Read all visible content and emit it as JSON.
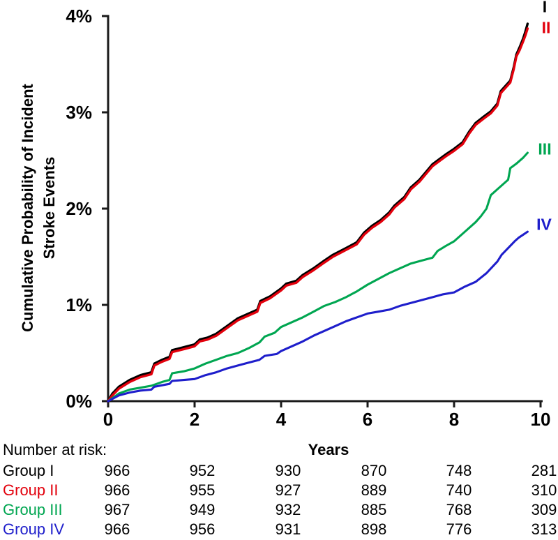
{
  "chart_data": {
    "type": "line",
    "subtype": "cumulative-incidence-curves",
    "xlabel": "Years",
    "ylabel_line1": "Cumulative Probability of Incident",
    "ylabel_line2": "Stroke Events",
    "xlim": [
      0,
      10
    ],
    "ylim_percent": [
      0,
      4
    ],
    "grid": false,
    "x_tick_values": [
      0,
      2,
      4,
      6,
      8,
      10
    ],
    "x_tick_labels": [
      "0",
      "2",
      "4",
      "6",
      "8",
      "10"
    ],
    "y_tick_values": [
      0,
      1,
      2,
      3,
      4
    ],
    "y_tick_labels": [
      "0%",
      "1%",
      "2%",
      "3%",
      "4%"
    ],
    "legend_position": "right-of-curve-ends",
    "series": [
      {
        "name": "Group I",
        "legend": "I",
        "color": "#000000",
        "points": [
          [
            0,
            0
          ],
          [
            0.1,
            0.08
          ],
          [
            0.25,
            0.15
          ],
          [
            0.5,
            0.22
          ],
          [
            0.75,
            0.27
          ],
          [
            1.0,
            0.3
          ],
          [
            1.07,
            0.39
          ],
          [
            1.25,
            0.43
          ],
          [
            1.42,
            0.46
          ],
          [
            1.48,
            0.53
          ],
          [
            1.75,
            0.56
          ],
          [
            2.0,
            0.59
          ],
          [
            2.12,
            0.64
          ],
          [
            2.3,
            0.66
          ],
          [
            2.5,
            0.7
          ],
          [
            2.75,
            0.78
          ],
          [
            3.0,
            0.86
          ],
          [
            3.2,
            0.9
          ],
          [
            3.45,
            0.95
          ],
          [
            3.52,
            1.04
          ],
          [
            3.75,
            1.09
          ],
          [
            4.0,
            1.17
          ],
          [
            4.12,
            1.22
          ],
          [
            4.35,
            1.25
          ],
          [
            4.5,
            1.31
          ],
          [
            4.75,
            1.38
          ],
          [
            5.0,
            1.46
          ],
          [
            5.2,
            1.52
          ],
          [
            5.5,
            1.59
          ],
          [
            5.75,
            1.65
          ],
          [
            5.92,
            1.75
          ],
          [
            6.1,
            1.82
          ],
          [
            6.3,
            1.88
          ],
          [
            6.5,
            1.96
          ],
          [
            6.62,
            2.03
          ],
          [
            6.85,
            2.12
          ],
          [
            7.0,
            2.22
          ],
          [
            7.2,
            2.3
          ],
          [
            7.35,
            2.38
          ],
          [
            7.5,
            2.46
          ],
          [
            7.8,
            2.56
          ],
          [
            8.0,
            2.62
          ],
          [
            8.2,
            2.69
          ],
          [
            8.35,
            2.8
          ],
          [
            8.5,
            2.89
          ],
          [
            8.7,
            2.96
          ],
          [
            8.85,
            3.01
          ],
          [
            9.0,
            3.09
          ],
          [
            9.08,
            3.22
          ],
          [
            9.2,
            3.28
          ],
          [
            9.3,
            3.33
          ],
          [
            9.38,
            3.47
          ],
          [
            9.44,
            3.6
          ],
          [
            9.52,
            3.68
          ],
          [
            9.6,
            3.77
          ],
          [
            9.65,
            3.84
          ],
          [
            9.7,
            3.92
          ]
        ]
      },
      {
        "name": "Group II",
        "legend": "II",
        "color": "#e2000c",
        "points": [
          [
            0,
            0
          ],
          [
            0.1,
            0.06
          ],
          [
            0.25,
            0.13
          ],
          [
            0.5,
            0.2
          ],
          [
            0.75,
            0.25
          ],
          [
            1.0,
            0.28
          ],
          [
            1.07,
            0.37
          ],
          [
            1.25,
            0.41
          ],
          [
            1.42,
            0.44
          ],
          [
            1.48,
            0.51
          ],
          [
            1.75,
            0.54
          ],
          [
            2.0,
            0.57
          ],
          [
            2.12,
            0.62
          ],
          [
            2.3,
            0.64
          ],
          [
            2.5,
            0.68
          ],
          [
            2.75,
            0.76
          ],
          [
            3.0,
            0.84
          ],
          [
            3.2,
            0.88
          ],
          [
            3.45,
            0.93
          ],
          [
            3.52,
            1.02
          ],
          [
            3.75,
            1.07
          ],
          [
            4.0,
            1.15
          ],
          [
            4.12,
            1.2
          ],
          [
            4.35,
            1.23
          ],
          [
            4.5,
            1.29
          ],
          [
            4.75,
            1.36
          ],
          [
            5.0,
            1.44
          ],
          [
            5.2,
            1.5
          ],
          [
            5.5,
            1.57
          ],
          [
            5.75,
            1.63
          ],
          [
            5.92,
            1.73
          ],
          [
            6.1,
            1.8
          ],
          [
            6.3,
            1.86
          ],
          [
            6.5,
            1.94
          ],
          [
            6.62,
            2.01
          ],
          [
            6.85,
            2.1
          ],
          [
            7.0,
            2.2
          ],
          [
            7.2,
            2.28
          ],
          [
            7.35,
            2.36
          ],
          [
            7.5,
            2.44
          ],
          [
            7.8,
            2.54
          ],
          [
            8.0,
            2.6
          ],
          [
            8.2,
            2.67
          ],
          [
            8.35,
            2.78
          ],
          [
            8.5,
            2.87
          ],
          [
            8.7,
            2.94
          ],
          [
            8.85,
            2.99
          ],
          [
            9.0,
            3.07
          ],
          [
            9.08,
            3.2
          ],
          [
            9.2,
            3.26
          ],
          [
            9.3,
            3.31
          ],
          [
            9.38,
            3.45
          ],
          [
            9.44,
            3.58
          ],
          [
            9.52,
            3.65
          ],
          [
            9.6,
            3.74
          ],
          [
            9.65,
            3.8
          ],
          [
            9.7,
            3.87
          ]
        ]
      },
      {
        "name": "Group III",
        "legend": "III",
        "color": "#00a651",
        "points": [
          [
            0,
            0
          ],
          [
            0.25,
            0.08
          ],
          [
            0.5,
            0.12
          ],
          [
            0.75,
            0.14
          ],
          [
            1.0,
            0.16
          ],
          [
            1.25,
            0.2
          ],
          [
            1.42,
            0.22
          ],
          [
            1.48,
            0.29
          ],
          [
            1.75,
            0.31
          ],
          [
            2.0,
            0.34
          ],
          [
            2.25,
            0.39
          ],
          [
            2.5,
            0.43
          ],
          [
            2.75,
            0.47
          ],
          [
            3.0,
            0.5
          ],
          [
            3.25,
            0.55
          ],
          [
            3.5,
            0.61
          ],
          [
            3.62,
            0.67
          ],
          [
            3.85,
            0.71
          ],
          [
            4.0,
            0.77
          ],
          [
            4.25,
            0.82
          ],
          [
            4.5,
            0.87
          ],
          [
            4.75,
            0.93
          ],
          [
            5.0,
            0.99
          ],
          [
            5.25,
            1.03
          ],
          [
            5.5,
            1.08
          ],
          [
            5.75,
            1.14
          ],
          [
            6.0,
            1.21
          ],
          [
            6.25,
            1.27
          ],
          [
            6.5,
            1.33
          ],
          [
            6.75,
            1.38
          ],
          [
            7.0,
            1.43
          ],
          [
            7.25,
            1.46
          ],
          [
            7.5,
            1.49
          ],
          [
            7.62,
            1.56
          ],
          [
            7.8,
            1.61
          ],
          [
            8.0,
            1.66
          ],
          [
            8.25,
            1.76
          ],
          [
            8.5,
            1.86
          ],
          [
            8.62,
            1.92
          ],
          [
            8.75,
            2.0
          ],
          [
            8.85,
            2.14
          ],
          [
            9.0,
            2.2
          ],
          [
            9.15,
            2.26
          ],
          [
            9.25,
            2.3
          ],
          [
            9.3,
            2.42
          ],
          [
            9.45,
            2.47
          ],
          [
            9.6,
            2.53
          ],
          [
            9.7,
            2.58
          ]
        ]
      },
      {
        "name": "Group IV",
        "legend": "IV",
        "color": "#1e1ecb",
        "points": [
          [
            0,
            0
          ],
          [
            0.25,
            0.06
          ],
          [
            0.5,
            0.09
          ],
          [
            0.75,
            0.11
          ],
          [
            1.0,
            0.12
          ],
          [
            1.07,
            0.15
          ],
          [
            1.42,
            0.18
          ],
          [
            1.48,
            0.21
          ],
          [
            1.75,
            0.22
          ],
          [
            2.0,
            0.23
          ],
          [
            2.25,
            0.27
          ],
          [
            2.5,
            0.3
          ],
          [
            2.75,
            0.34
          ],
          [
            3.0,
            0.37
          ],
          [
            3.25,
            0.4
          ],
          [
            3.5,
            0.43
          ],
          [
            3.62,
            0.47
          ],
          [
            3.9,
            0.49
          ],
          [
            4.0,
            0.52
          ],
          [
            4.25,
            0.57
          ],
          [
            4.5,
            0.62
          ],
          [
            4.75,
            0.68
          ],
          [
            5.0,
            0.73
          ],
          [
            5.25,
            0.78
          ],
          [
            5.5,
            0.83
          ],
          [
            5.75,
            0.87
          ],
          [
            6.0,
            0.91
          ],
          [
            6.25,
            0.93
          ],
          [
            6.5,
            0.95
          ],
          [
            6.75,
            0.99
          ],
          [
            7.0,
            1.02
          ],
          [
            7.25,
            1.05
          ],
          [
            7.5,
            1.08
          ],
          [
            7.75,
            1.11
          ],
          [
            8.0,
            1.13
          ],
          [
            8.25,
            1.19
          ],
          [
            8.5,
            1.24
          ],
          [
            8.75,
            1.33
          ],
          [
            9.0,
            1.45
          ],
          [
            9.1,
            1.52
          ],
          [
            9.25,
            1.59
          ],
          [
            9.4,
            1.66
          ],
          [
            9.5,
            1.7
          ],
          [
            9.6,
            1.73
          ],
          [
            9.7,
            1.76
          ]
        ]
      }
    ]
  },
  "risk_table": {
    "title": "Number at risk:",
    "time_columns": [
      0,
      2,
      4,
      6,
      8,
      10
    ],
    "rows": [
      {
        "label": "Group I",
        "color": "#000000",
        "values": [
          "966",
          "952",
          "930",
          "870",
          "748",
          "281"
        ]
      },
      {
        "label": "Group II",
        "color": "#e2000c",
        "values": [
          "966",
          "955",
          "927",
          "889",
          "740",
          "310"
        ]
      },
      {
        "label": "Group III",
        "color": "#00a651",
        "values": [
          "967",
          "949",
          "932",
          "885",
          "768",
          "309"
        ]
      },
      {
        "label": "Group IV",
        "color": "#1e1ecb",
        "values": [
          "966",
          "956",
          "931",
          "898",
          "776",
          "313"
        ]
      }
    ]
  }
}
